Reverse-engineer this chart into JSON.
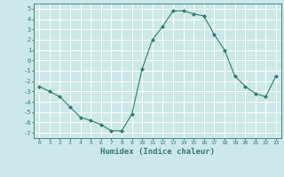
{
  "xlabel": "Humidex (Indice chaleur)",
  "x": [
    0,
    1,
    2,
    3,
    4,
    5,
    6,
    7,
    8,
    9,
    10,
    11,
    12,
    13,
    14,
    15,
    16,
    17,
    18,
    19,
    20,
    21,
    22,
    23
  ],
  "y": [
    -2.5,
    -3.0,
    -3.5,
    -4.5,
    -5.5,
    -5.8,
    -6.2,
    -6.8,
    -6.8,
    -5.2,
    -0.8,
    2.0,
    3.3,
    4.8,
    4.8,
    4.5,
    4.3,
    2.5,
    1.0,
    -1.5,
    -2.5,
    -3.2,
    -3.5,
    -1.5
  ],
  "line_color": "#2e7d6e",
  "marker": "D",
  "marker_size": 2,
  "bg_color": "#cce8e8",
  "grid_color": "#ffffff",
  "text_color": "#2e7d6e",
  "spine_color": "#2e7d6e",
  "ylim": [
    -7.5,
    5.5
  ],
  "xlim": [
    -0.5,
    23.5
  ],
  "yticks": [
    -7,
    -6,
    -5,
    -4,
    -3,
    -2,
    -1,
    0,
    1,
    2,
    3,
    4,
    5
  ],
  "xticks": [
    0,
    1,
    2,
    3,
    4,
    5,
    6,
    7,
    8,
    9,
    10,
    11,
    12,
    13,
    14,
    15,
    16,
    17,
    18,
    19,
    20,
    21,
    22,
    23
  ],
  "xtick_labels": [
    "0",
    "1",
    "2",
    "3",
    "4",
    "5",
    "6",
    "7",
    "8",
    "9",
    "10",
    "11",
    "12",
    "13",
    "14",
    "15",
    "16",
    "17",
    "18",
    "19",
    "20",
    "21",
    "22",
    "23"
  ]
}
